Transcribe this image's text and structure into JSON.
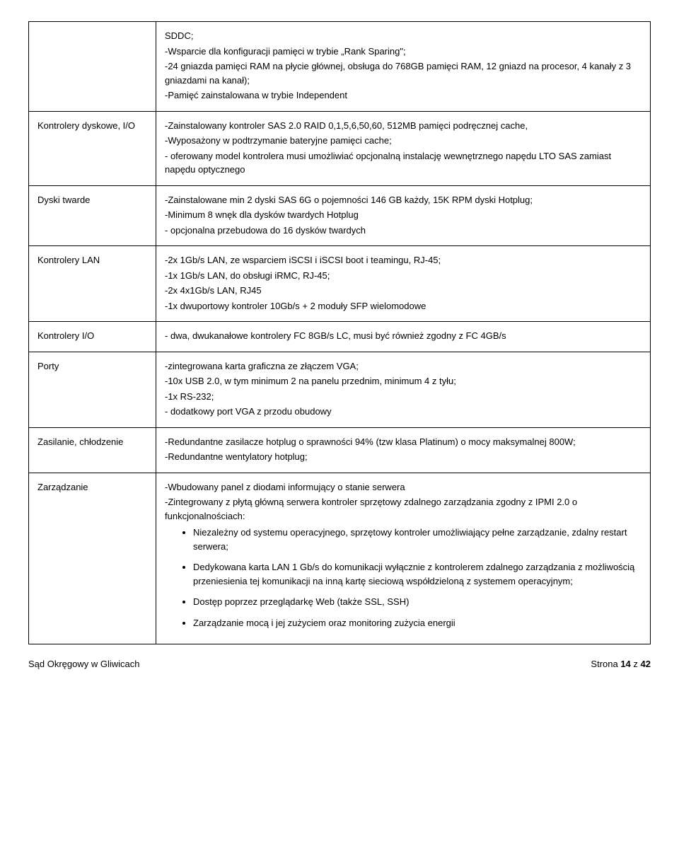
{
  "row0": {
    "label": "",
    "lines": [
      "SDDC;",
      "-Wsparcie dla konfiguracji pamięci w trybie „Rank Sparing\";",
      "-24 gniazda pamięci RAM na płycie głównej, obsługa do 768GB pamięci RAM, 12 gniazd na procesor, 4 kanały z 3 gniazdami na kanał);",
      "-Pamięć zainstalowana w trybie Independent"
    ]
  },
  "row1": {
    "label": "Kontrolery dyskowe, I/O",
    "lines": [
      "-Zainstalowany kontroler SAS 2.0 RAID 0,1,5,6,50,60, 512MB pamięci podręcznej cache,",
      "-Wyposażony w podtrzymanie bateryjne pamięci cache;",
      "- oferowany model kontrolera musi umożliwiać opcjonalną instalację wewnętrznego napędu LTO SAS zamiast napędu optycznego"
    ]
  },
  "row2": {
    "label": "Dyski twarde",
    "lines": [
      "-Zainstalowane min 2 dyski SAS 6G o pojemności 146 GB każdy, 15K RPM dyski Hotplug;",
      "-Minimum 8 wnęk dla dysków twardych Hotplug",
      "- opcjonalna przebudowa do 16 dysków twardych"
    ]
  },
  "row3": {
    "label": "Kontrolery LAN",
    "lines": [
      "-2x 1Gb/s LAN, ze wsparciem iSCSI i iSCSI boot i teamingu, RJ-45;",
      "-1x 1Gb/s LAN, do obsługi iRMC, RJ-45;",
      "-2x 4x1Gb/s LAN, RJ45",
      "-1x dwuportowy kontroler 10Gb/s + 2 moduły SFP wielomodowe"
    ]
  },
  "row4": {
    "label": "Kontrolery I/O",
    "lines": [
      "- dwa, dwukanałowe kontrolery FC 8GB/s LC, musi być również zgodny z FC 4GB/s"
    ]
  },
  "row5": {
    "label": "Porty",
    "lines": [
      "-zintegrowana karta graficzna ze złączem VGA;",
      "-10x USB 2.0, w tym minimum 2 na panelu przednim, minimum 4 z tyłu;",
      "-1x RS-232;",
      "- dodatkowy port VGA z przodu obudowy"
    ]
  },
  "row6": {
    "label": "Zasilanie, chłodzenie",
    "lines": [
      "-Redundantne zasilacze hotplug o sprawności 94% (tzw klasa Platinum) o mocy maksymalnej 800W;",
      "-Redundantne wentylatory hotplug;"
    ]
  },
  "row7": {
    "label": "Zarządzanie",
    "lines": [
      "-Wbudowany panel z diodami informujący o stanie serwera",
      "-Zintegrowany z płytą główną serwera kontroler sprzętowy zdalnego zarządzania zgodny z IPMI 2.0 o funkcjonalnościach:"
    ],
    "bullets": [
      "Niezależny od systemu operacyjnego, sprzętowy kontroler umożliwiający pełne zarządzanie, zdalny restart serwera;",
      "Dedykowana karta LAN 1 Gb/s do komunikacji wyłącznie z kontrolerem zdalnego zarządzania z możliwością przeniesienia tej komunikacji na inną kartę sieciową współdzieloną z systemem operacyjnym;",
      "Dostęp poprzez przeglądarkę Web (także SSL, SSH)",
      "Zarządzanie mocą i jej zużyciem oraz monitoring zużycia energii"
    ]
  },
  "footer": {
    "left": "Sąd Okręgowy w Gliwicach",
    "right_prefix": "Strona ",
    "right_page": "14",
    "right_mid": " z ",
    "right_total": "42"
  }
}
